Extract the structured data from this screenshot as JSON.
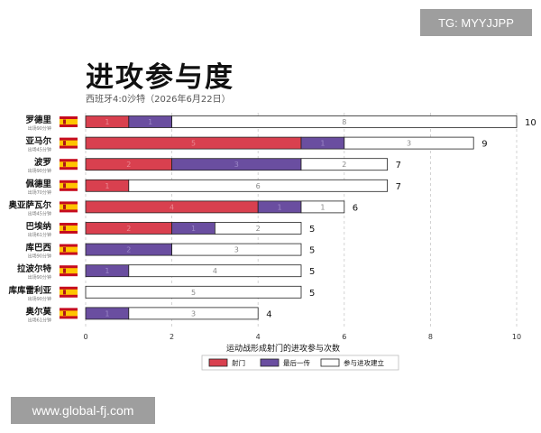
{
  "watermark_top": "TG: MYYJJPP",
  "watermark_bottom": "www.global-fj.com",
  "chart_data": {
    "type": "bar",
    "orientation": "horizontal",
    "stacked": true,
    "title": "进攻参与度",
    "subtitle": "西班牙4:0沙特（2026年6月22日）",
    "xlabel": "运动战形成射门的进攻参与次数",
    "xlim": [
      0,
      10
    ],
    "xticks": [
      0,
      2,
      4,
      6,
      8,
      10
    ],
    "grid": "vertical-dashed",
    "legend_position": "bottom",
    "colors": {
      "shots": "#d9404f",
      "last_pass": "#6a4ea0",
      "buildup": "#ffffff",
      "edge": "#222222"
    },
    "players": [
      {
        "name": "罗德里",
        "minutes": "出场90分钟"
      },
      {
        "name": "亚马尔",
        "minutes": "出场45分钟"
      },
      {
        "name": "波罗",
        "minutes": "出场90分钟"
      },
      {
        "name": "佩德里",
        "minutes": "出场70分钟"
      },
      {
        "name": "奥亚萨瓦尔",
        "minutes": "出场45分钟"
      },
      {
        "name": "巴埃纳",
        "minutes": "出场61分钟"
      },
      {
        "name": "库巴西",
        "minutes": "出场90分钟"
      },
      {
        "name": "拉波尔特",
        "minutes": "出场90分钟"
      },
      {
        "name": "库库雷利亚",
        "minutes": "出场90分钟"
      },
      {
        "name": "奥尔莫",
        "minutes": "出场61分钟"
      }
    ],
    "series": [
      {
        "name": "射门",
        "values": [
          1,
          5,
          2,
          1,
          4,
          2,
          0,
          0,
          0,
          0
        ]
      },
      {
        "name": "最后一传",
        "values": [
          1,
          1,
          3,
          0,
          1,
          1,
          2,
          1,
          0,
          1
        ]
      },
      {
        "name": "参与进攻建立",
        "values": [
          8,
          3,
          2,
          6,
          1,
          2,
          3,
          4,
          5,
          3
        ]
      }
    ],
    "totals": [
      10,
      9,
      7,
      7,
      6,
      5,
      5,
      5,
      5,
      4
    ]
  }
}
